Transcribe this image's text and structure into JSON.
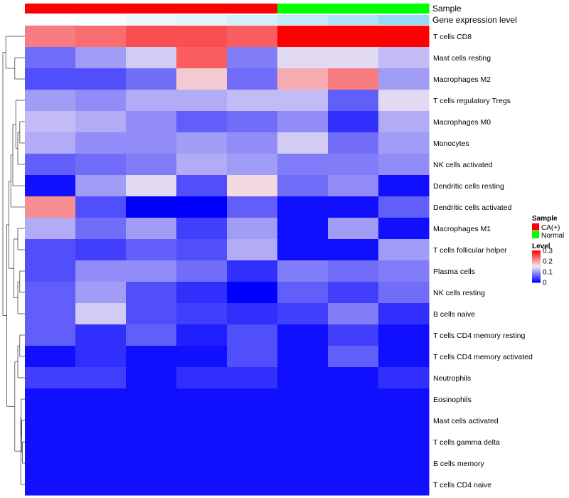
{
  "chart_data": {
    "type": "heatmap",
    "title": "",
    "annotation_rows": [
      {
        "name": "Sample",
        "label": "Sample"
      },
      {
        "name": "Gene expression level",
        "label": "Gene expression level"
      }
    ],
    "columns": [
      {
        "sample": "CA(+)",
        "gene_level": 0.0
      },
      {
        "sample": "CA(+)",
        "gene_level": 0.05
      },
      {
        "sample": "CA(+)",
        "gene_level": 0.12
      },
      {
        "sample": "CA(+)",
        "gene_level": 0.2
      },
      {
        "sample": "CA(+)",
        "gene_level": 0.28
      },
      {
        "sample": "Normal",
        "gene_level": 0.38
      },
      {
        "sample": "Normal",
        "gene_level": 0.52
      },
      {
        "sample": "Normal",
        "gene_level": 0.66
      }
    ],
    "rows": [
      "T cells CD8",
      "Mast cells resting",
      "Macrophages M2",
      "T cells regulatory  Tregs",
      "Macrophages M0",
      "Monocytes",
      "NK cells activated",
      "Dendritic cells resting",
      "Dendritic cells activated",
      "Macrophages M1",
      "T cells follicular helper",
      "Plasma cells",
      "NK cells resting",
      "B cells naive",
      "T cells CD4 memory resting",
      "T cells CD4 memory activated",
      "Neutrophils",
      "Eosinophils",
      "Mast cells activated",
      "T cells gamma delta",
      "B cells memory",
      "T cells CD4 naive"
    ],
    "values": [
      [
        0.22,
        0.23,
        0.25,
        0.25,
        0.24,
        0.3,
        0.3,
        0.3
      ],
      [
        0.07,
        0.1,
        0.13,
        0.24,
        0.08,
        0.14,
        0.14,
        0.12
      ],
      [
        0.05,
        0.05,
        0.07,
        0.17,
        0.07,
        0.19,
        0.22,
        0.1
      ],
      [
        0.1,
        0.09,
        0.11,
        0.11,
        0.12,
        0.12,
        0.06,
        0.14
      ],
      [
        0.12,
        0.11,
        0.09,
        0.06,
        0.07,
        0.09,
        0.03,
        0.11
      ],
      [
        0.11,
        0.09,
        0.09,
        0.1,
        0.09,
        0.13,
        0.07,
        0.1
      ],
      [
        0.06,
        0.07,
        0.08,
        0.11,
        0.1,
        0.08,
        0.08,
        0.09
      ],
      [
        0.01,
        0.1,
        0.14,
        0.05,
        0.16,
        0.07,
        0.09,
        0.01
      ],
      [
        0.21,
        0.05,
        0.0,
        0.0,
        0.06,
        0.01,
        0.01,
        0.06
      ],
      [
        0.11,
        0.07,
        0.1,
        0.04,
        0.1,
        0.01,
        0.1,
        0.01
      ],
      [
        0.05,
        0.04,
        0.06,
        0.05,
        0.11,
        0.01,
        0.01,
        0.1
      ],
      [
        0.05,
        0.09,
        0.09,
        0.07,
        0.03,
        0.08,
        0.07,
        0.08
      ],
      [
        0.06,
        0.1,
        0.05,
        0.03,
        0.0,
        0.06,
        0.04,
        0.07
      ],
      [
        0.06,
        0.13,
        0.05,
        0.04,
        0.03,
        0.04,
        0.08,
        0.03
      ],
      [
        0.06,
        0.03,
        0.06,
        0.02,
        0.05,
        0.01,
        0.04,
        0.01
      ],
      [
        0.01,
        0.03,
        0.01,
        0.01,
        0.05,
        0.01,
        0.06,
        0.01
      ],
      [
        0.04,
        0.04,
        0.01,
        0.03,
        0.03,
        0.01,
        0.01,
        0.03
      ],
      [
        0.01,
        0.01,
        0.01,
        0.01,
        0.01,
        0.01,
        0.01,
        0.01
      ],
      [
        0.01,
        0.01,
        0.01,
        0.01,
        0.01,
        0.01,
        0.01,
        0.01
      ],
      [
        0.01,
        0.01,
        0.01,
        0.01,
        0.01,
        0.01,
        0.01,
        0.01
      ],
      [
        0.01,
        0.01,
        0.01,
        0.01,
        0.01,
        0.01,
        0.01,
        0.01
      ],
      [
        0.01,
        0.01,
        0.01,
        0.01,
        0.01,
        0.01,
        0.01,
        0.01
      ]
    ],
    "color_scale": {
      "min": 0,
      "max": 0.3,
      "low": "#0000ff",
      "mid": "#f2eaf2",
      "high": "#ff0000"
    },
    "legend": {
      "sample_title": "Sample",
      "sample_items": [
        {
          "label": "CA(+)",
          "color": "#ff0000"
        },
        {
          "label": "Normal",
          "color": "#00ff00"
        }
      ],
      "level_title": "Level",
      "level_ticks": [
        {
          "label": "0.3",
          "value": 0.3
        },
        {
          "label": "0.2",
          "value": 0.2
        },
        {
          "label": "0.1",
          "value": 0.1
        },
        {
          "label": "0",
          "value": 0
        }
      ],
      "placement": "right"
    },
    "gene_level_colors": {
      "low": "#ffffff",
      "high": "#5fc8f5"
    },
    "dendrogram": {
      "side": "left",
      "leaves": 22
    }
  }
}
